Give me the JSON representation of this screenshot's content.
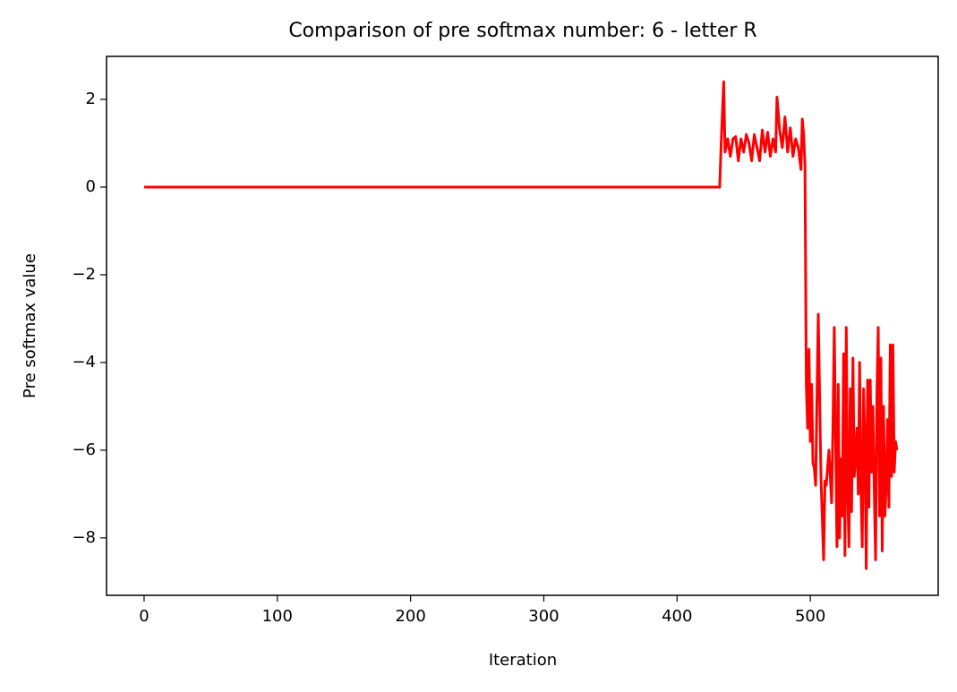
{
  "chart_data": {
    "type": "line",
    "title": "Comparison of pre softmax number: 6 - letter R",
    "x_label": "Iteration",
    "y_label": "Pre softmax value",
    "x": [
      0,
      432,
      433,
      435,
      436,
      438,
      440,
      442,
      444,
      446,
      448,
      450,
      452,
      454,
      456,
      458,
      460,
      462,
      464,
      466,
      468,
      470,
      472,
      474,
      475,
      477,
      479,
      481,
      483,
      485,
      487,
      489,
      491,
      493,
      494,
      495,
      496,
      497,
      498,
      499,
      500,
      501,
      502,
      503,
      504,
      506,
      508,
      510,
      511,
      512,
      514,
      516,
      517,
      518,
      520,
      521,
      522,
      523,
      524,
      525,
      526,
      527,
      528,
      529,
      530,
      531,
      532,
      533,
      534,
      535,
      536,
      537,
      538,
      539,
      540,
      541,
      542,
      543,
      544,
      545,
      546,
      547,
      548,
      549,
      550,
      551,
      552,
      553,
      554,
      555,
      556,
      557,
      558,
      559,
      560,
      561,
      562,
      563,
      564,
      565
    ],
    "series": [
      {
        "color": "#ff0000",
        "values": [
          0,
          0,
          0.9,
          2.4,
          0.8,
          1.1,
          0.7,
          1.1,
          1.15,
          0.6,
          1.1,
          0.8,
          1.2,
          1.0,
          0.6,
          1.2,
          0.9,
          0.6,
          1.3,
          0.8,
          1.25,
          0.7,
          1.1,
          0.8,
          2.05,
          1.3,
          0.9,
          1.6,
          0.8,
          1.35,
          0.7,
          1.1,
          0.9,
          0.4,
          1.55,
          1.2,
          0.5,
          -4.5,
          -5.5,
          -3.7,
          -5.8,
          -4.5,
          -6.3,
          -6.4,
          -6.8,
          -2.9,
          -6.6,
          -8.5,
          -6.7,
          -6.8,
          -6.0,
          -7.2,
          -5.5,
          -3.2,
          -8.2,
          -4.5,
          -8.0,
          -6.2,
          -7.5,
          -3.8,
          -8.4,
          -3.2,
          -6.8,
          -8.2,
          -4.6,
          -7.4,
          -3.9,
          -6.6,
          -6.2,
          -5.5,
          -7.0,
          -4.0,
          -6.8,
          -8.2,
          -4.6,
          -5.8,
          -8.7,
          -4.4,
          -7.3,
          -4.4,
          -6.5,
          -5.0,
          -6.9,
          -8.5,
          -4.7,
          -3.2,
          -7.5,
          -3.9,
          -8.3,
          -5.0,
          -7.5,
          -6.8,
          -5.3,
          -7.3,
          -3.6,
          -6.6,
          -3.6,
          -6.5,
          -5.8,
          -6.0
        ]
      }
    ],
    "xlim": [
      -28.2,
      596
    ],
    "ylim": [
      -9.31,
      2.98
    ],
    "xticks": [
      0,
      100,
      200,
      300,
      400,
      500
    ],
    "yticks": [
      {
        "value": -8,
        "label": "−8"
      },
      {
        "value": -6,
        "label": "−6"
      },
      {
        "value": -4,
        "label": "−4"
      },
      {
        "value": -2,
        "label": "−2"
      },
      0,
      2
    ]
  }
}
